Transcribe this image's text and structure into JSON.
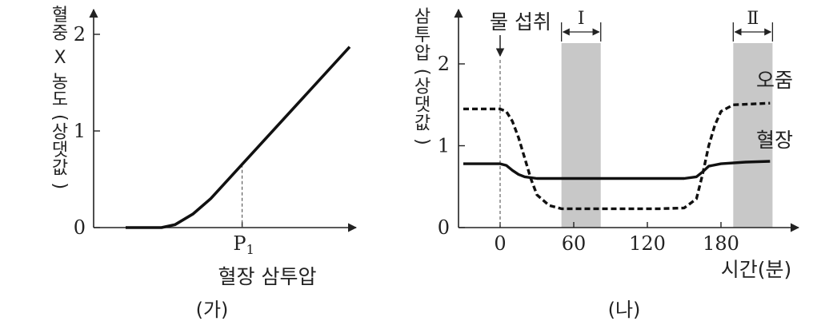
{
  "chart_data": [
    {
      "type": "line",
      "caption": "(가)",
      "ylabel": "혈중 X 농도(상댓값)",
      "xlabel": "혈장 삼투압",
      "yticks": [
        0,
        1,
        2
      ],
      "ylim": [
        0,
        2.2
      ],
      "xlim": [
        0,
        1
      ],
      "x_marker": {
        "label": "P",
        "subscript": "1",
        "x": 0.52
      },
      "series": [
        {
          "name": "",
          "x": [
            0.0,
            0.16,
            0.22,
            0.3,
            0.38,
            1.0
          ],
          "y": [
            0.0,
            0.0,
            0.03,
            0.14,
            0.3,
            1.87
          ]
        }
      ]
    },
    {
      "type": "line",
      "caption": "(나)",
      "ylabel": "삼투압(상댓값)",
      "xlabel": "시간(분)",
      "xticks": [
        0,
        60,
        120,
        180
      ],
      "yticks": [
        0,
        1,
        2
      ],
      "xlim": [
        -45,
        240
      ],
      "ylim": [
        0,
        2.5
      ],
      "event": {
        "label": "물 섭취",
        "x": 0
      },
      "shaded": [
        {
          "label": "Ⅰ",
          "x_start": 50,
          "x_end": 82
        },
        {
          "label": "Ⅱ",
          "x_start": 190,
          "x_end": 222
        }
      ],
      "series": [
        {
          "name": "오줌",
          "style": "dashed",
          "x": [
            -30,
            0,
            5,
            10,
            15,
            20,
            25,
            30,
            40,
            50,
            60,
            90,
            130,
            150,
            160,
            165,
            170,
            175,
            180,
            190,
            220
          ],
          "y": [
            1.45,
            1.45,
            1.42,
            1.3,
            1.1,
            0.85,
            0.6,
            0.4,
            0.27,
            0.23,
            0.23,
            0.23,
            0.23,
            0.24,
            0.35,
            0.65,
            1.0,
            1.25,
            1.42,
            1.5,
            1.52
          ]
        },
        {
          "name": "혈장",
          "style": "solid",
          "x": [
            -30,
            0,
            5,
            10,
            15,
            20,
            30,
            60,
            150,
            160,
            165,
            170,
            180,
            200,
            220
          ],
          "y": [
            0.78,
            0.78,
            0.76,
            0.7,
            0.65,
            0.62,
            0.6,
            0.6,
            0.6,
            0.62,
            0.68,
            0.75,
            0.78,
            0.8,
            0.81
          ]
        }
      ]
    }
  ]
}
